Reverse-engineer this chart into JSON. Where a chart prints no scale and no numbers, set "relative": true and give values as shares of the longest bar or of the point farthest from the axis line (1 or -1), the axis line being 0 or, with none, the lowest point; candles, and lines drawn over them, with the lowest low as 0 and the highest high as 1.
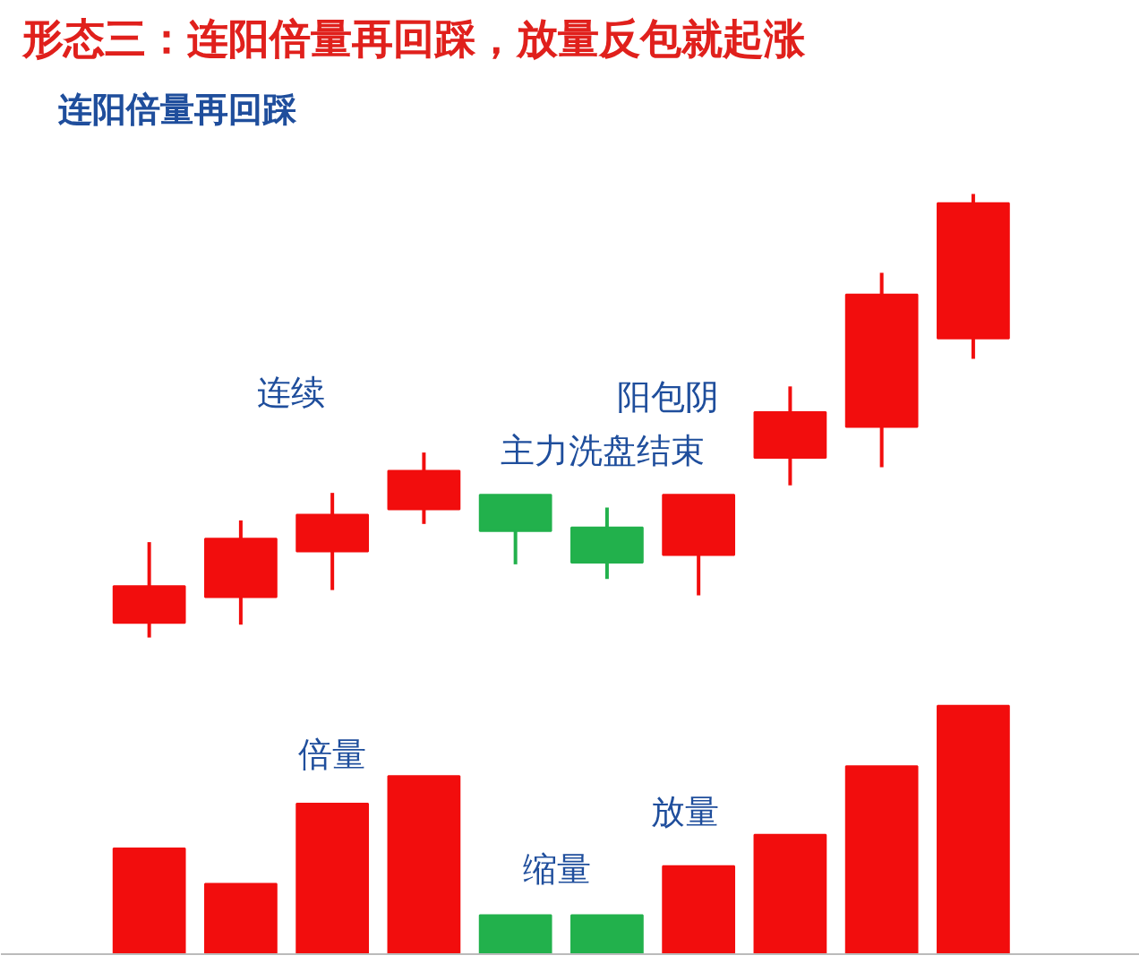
{
  "chart_data": [
    {
      "type": "candlestick",
      "title": "形态三：连阳倍量再回踩，放量反包就起涨",
      "subtitle": "连阳倍量再回踩",
      "relative": true,
      "categories": [
        null,
        null,
        null,
        null,
        null,
        null,
        null,
        null,
        null,
        null
      ],
      "ohlc": [
        [
          0.033,
          0.215,
          0,
          0.116
        ],
        [
          0.091,
          0.264,
          0.029,
          0.223
        ],
        [
          0.194,
          0.326,
          0.107,
          0.277
        ],
        [
          0.289,
          0.417,
          0.256,
          0.376
        ],
        [
          0.322,
          0.322,
          0.165,
          0.24
        ],
        [
          0.248,
          0.293,
          0.132,
          0.169
        ],
        [
          0.186,
          0.322,
          0.095,
          0.322
        ],
        [
          0.405,
          0.566,
          0.343,
          0.508
        ],
        [
          0.475,
          0.822,
          0.384,
          0.773
        ],
        [
          0.674,
          1,
          0.628,
          0.979
        ]
      ],
      "colors": [
        "#f20d0d",
        "#f20d0d",
        "#f20d0d",
        "#f20d0d",
        "#22b14c",
        "#22b14c",
        "#f20d0d",
        "#f20d0d",
        "#f20d0d",
        "#f20d0d"
      ],
      "annotations": [
        "连续",
        "主力洗盘结束",
        "阳包阴"
      ]
    },
    {
      "type": "bar",
      "relative": true,
      "categories": [
        null,
        null,
        null,
        null,
        null,
        null,
        null,
        null,
        null,
        null
      ],
      "values": [
        0.425,
        0.283,
        0.606,
        0.717,
        0.157,
        0.157,
        0.354,
        0.48,
        0.756,
        1
      ],
      "colors": [
        "#f20d0d",
        "#f20d0d",
        "#f20d0d",
        "#f20d0d",
        "#22b14c",
        "#22b14c",
        "#f20d0d",
        "#f20d0d",
        "#f20d0d",
        "#f20d0d"
      ],
      "annotations": [
        "倍量",
        "缩量",
        "放量"
      ]
    }
  ]
}
